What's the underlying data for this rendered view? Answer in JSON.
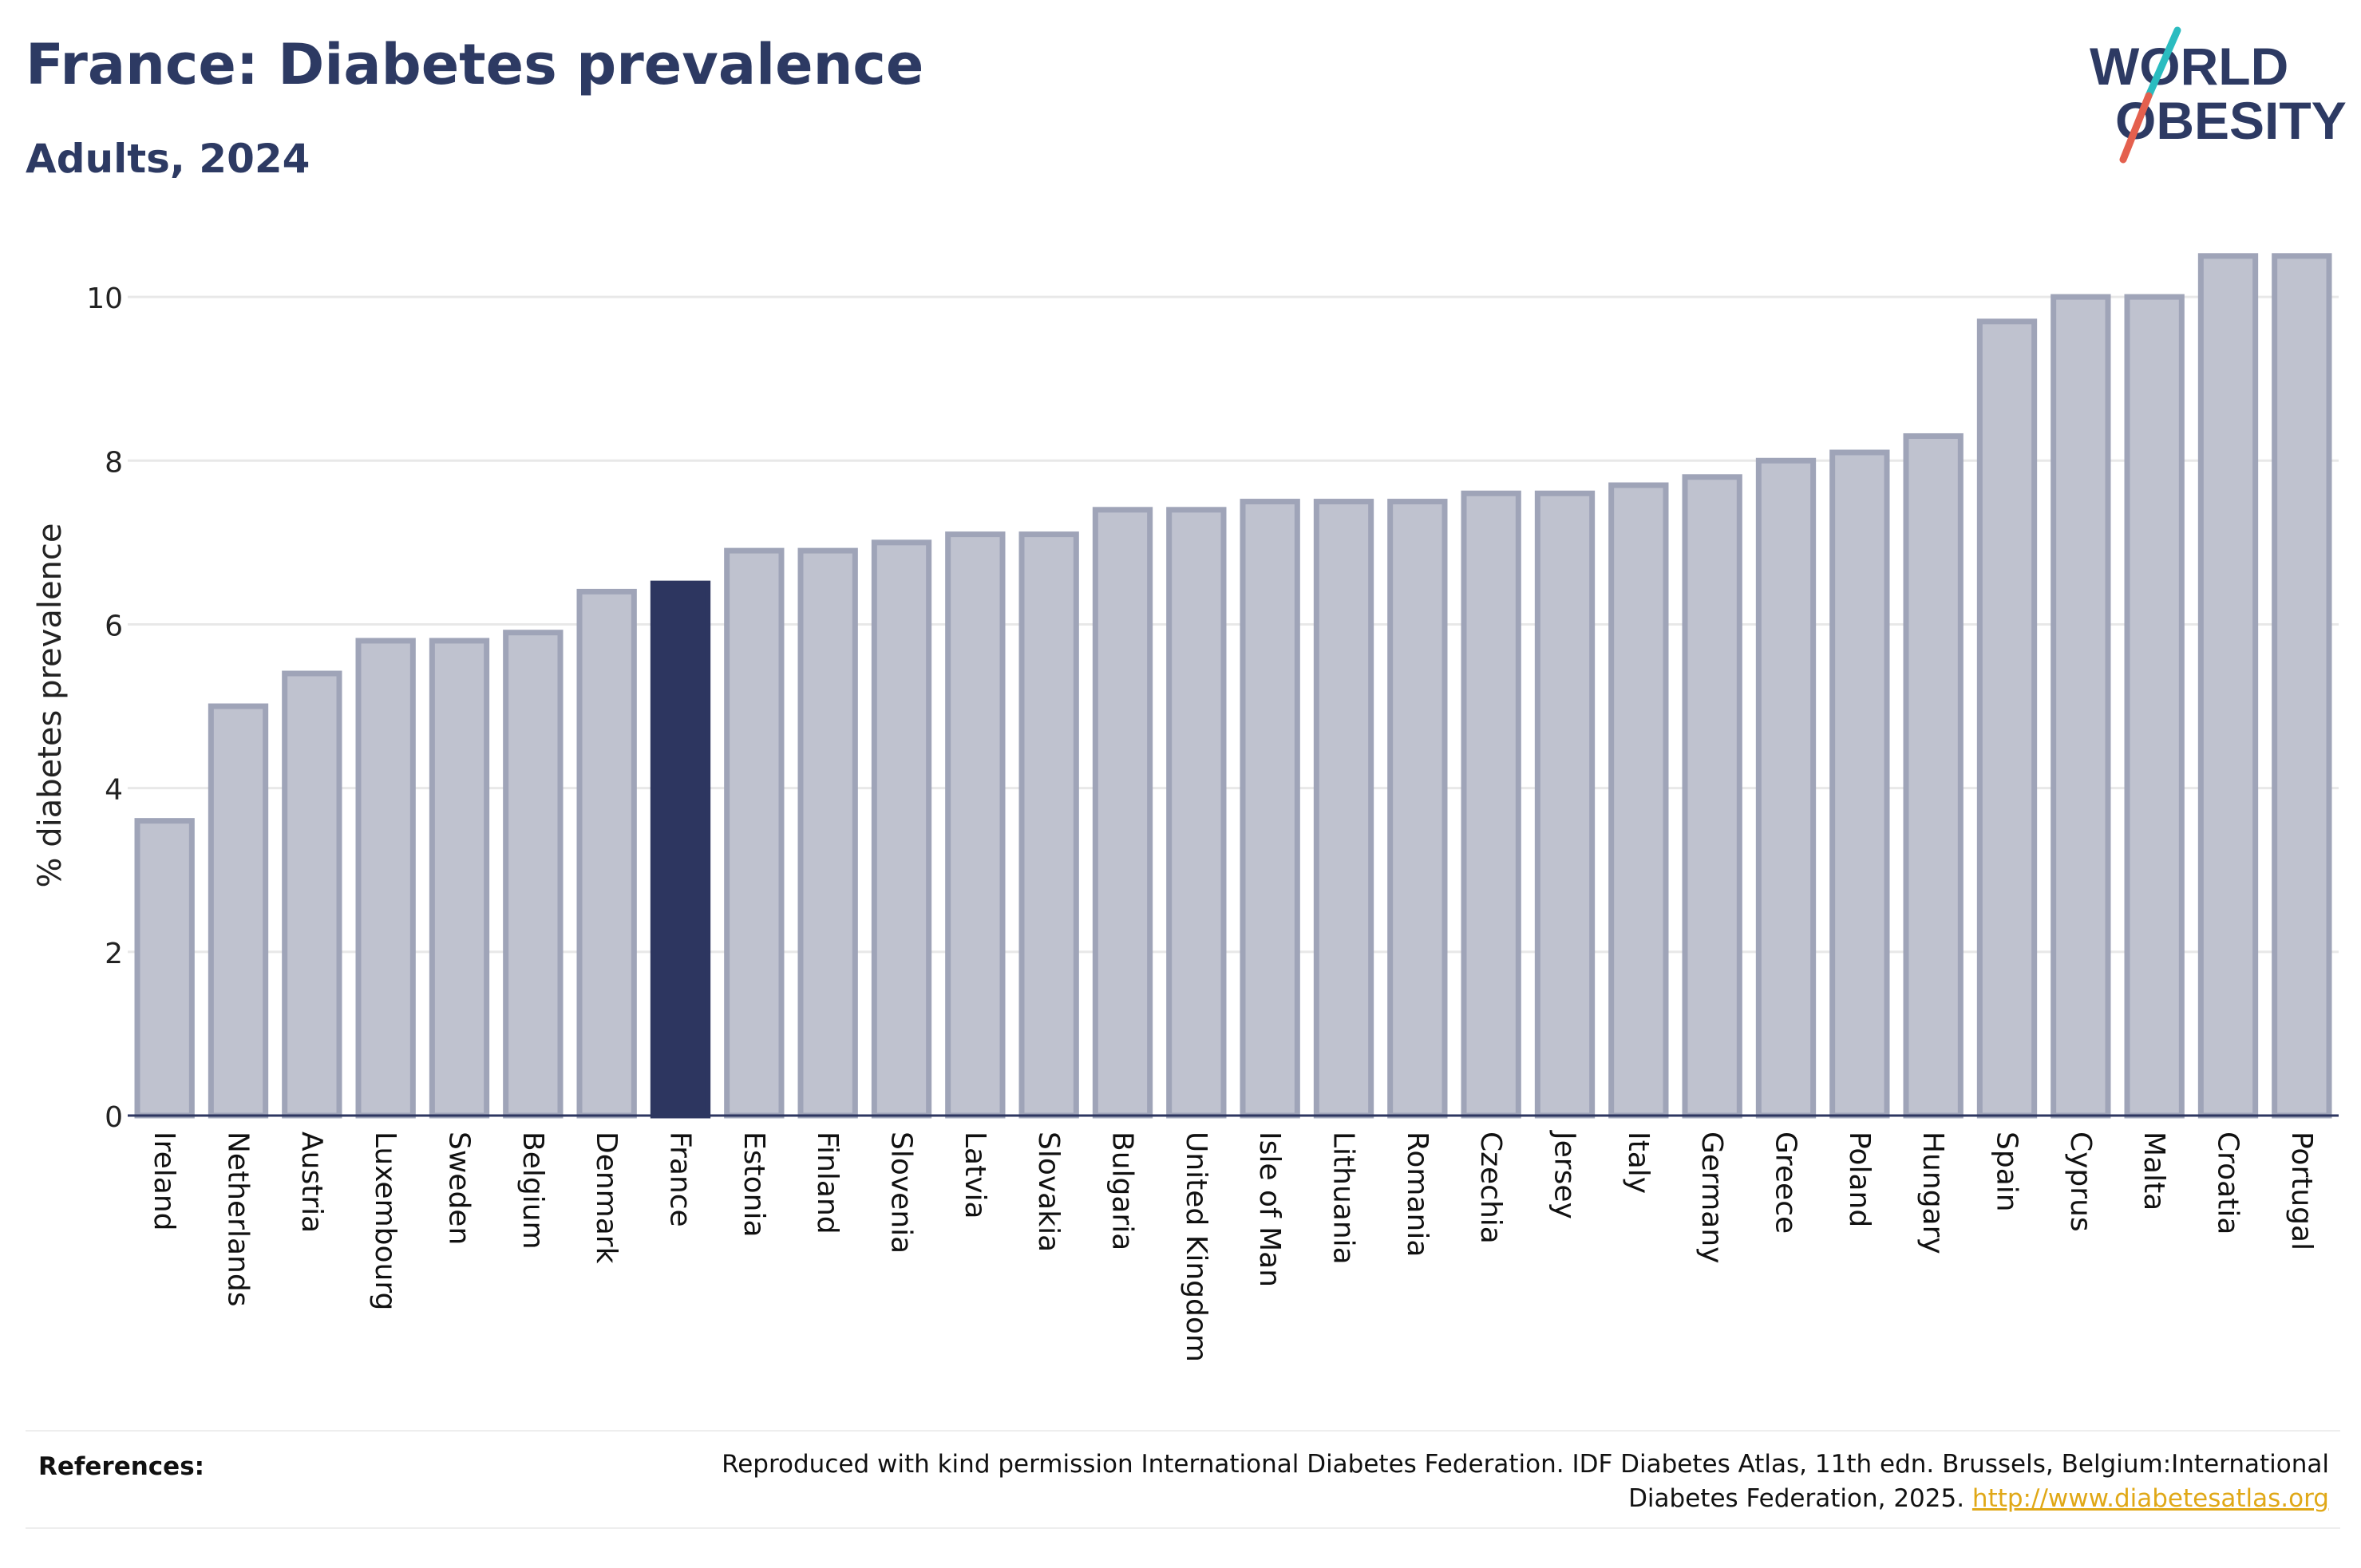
{
  "header": {
    "title": "France: Diabetes prevalence",
    "subtitle": "Adults, 2024"
  },
  "logo": {
    "line1": "WORLD",
    "line2": "OBESITY",
    "text_color": "#2d3a63",
    "slash_colors": [
      "#2bbcc0",
      "#e4604e"
    ]
  },
  "chart_data": {
    "type": "bar",
    "ylabel": "% diabetes prevalence",
    "xlabel": "",
    "ylim": [
      0,
      10.8
    ],
    "yticks": [
      0,
      2,
      4,
      6,
      8,
      10
    ],
    "grid": true,
    "highlight": "France",
    "highlight_color": "#2d3660",
    "bar_color": "#bfc2cf",
    "bar_border_color": "#9fa4b8",
    "categories": [
      "Ireland",
      "Netherlands",
      "Austria",
      "Luxembourg",
      "Sweden",
      "Belgium",
      "Denmark",
      "France",
      "Estonia",
      "Finland",
      "Slovenia",
      "Latvia",
      "Slovakia",
      "Bulgaria",
      "United Kingdom",
      "Isle of Man",
      "Lithuania",
      "Romania",
      "Czechia",
      "Jersey",
      "Italy",
      "Germany",
      "Greece",
      "Poland",
      "Hungary",
      "Spain",
      "Cyprus",
      "Malta",
      "Croatia",
      "Portugal"
    ],
    "values": [
      3.6,
      5.0,
      5.4,
      5.8,
      5.8,
      5.9,
      6.4,
      6.5,
      6.9,
      6.9,
      7.0,
      7.1,
      7.1,
      7.4,
      7.4,
      7.5,
      7.5,
      7.5,
      7.6,
      7.6,
      7.7,
      7.8,
      8.0,
      8.1,
      8.3,
      9.7,
      10.0,
      10.0,
      10.5,
      10.5
    ]
  },
  "references": {
    "label": "References:",
    "text": "Reproduced with kind permission International Diabetes Federation. IDF Diabetes Atlas, 11th edn. Brussels, Belgium:International Diabetes Federation, 2025.",
    "link": "http://www.diabetesatlas.org"
  }
}
